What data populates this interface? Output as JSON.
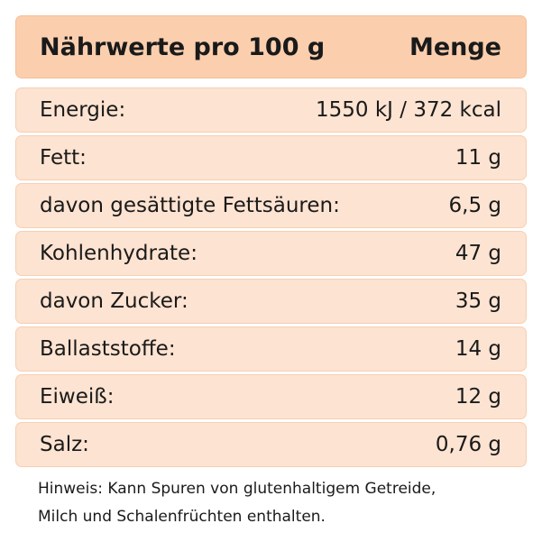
{
  "header": {
    "title": "Nährwerte pro 100 g",
    "column": "Menge"
  },
  "table": {
    "rows": [
      [
        "Energie:",
        "1550 kJ / 372 kcal"
      ],
      [
        "Fett:",
        "11 g"
      ],
      [
        "davon gesättigte Fettsäuren:",
        "6,5 g"
      ],
      [
        "Kohlenhydrate:",
        "47 g"
      ],
      [
        "davon Zucker:",
        "35 g"
      ],
      [
        "Ballaststoffe:",
        "14 g"
      ],
      [
        "Eiweiß:",
        "12 g"
      ],
      [
        "Salz:",
        "0,76 g"
      ]
    ]
  },
  "note": {
    "lines": [
      "Hinweis: Kann Spuren von glutenhaltigem Getreide,",
      "Milch und Schalenfrüchten enthalten."
    ]
  }
}
